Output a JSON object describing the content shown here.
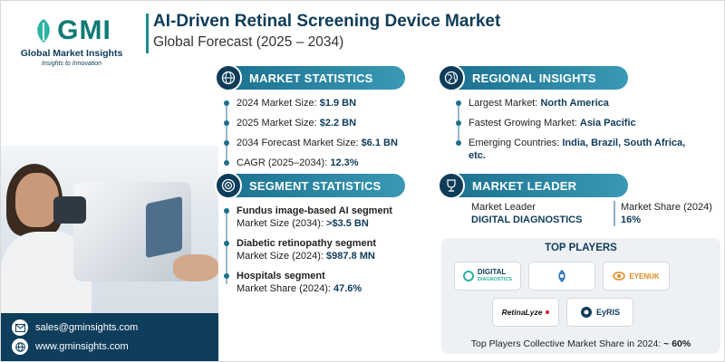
{
  "brand": {
    "logo_text": "GMI",
    "name": "Global Market Insights",
    "tagline": "Insights to Innovation"
  },
  "header": {
    "title": "AI-Driven Retinal Screening Device Market",
    "subtitle": "Global Forecast (2025 – 2034)"
  },
  "market_statistics": {
    "heading": "MARKET STATISTICS",
    "items": [
      {
        "label": "2024 Market Size: ",
        "value": "$1.9 BN"
      },
      {
        "label": "2025 Market Size: ",
        "value": "$2.2 BN"
      },
      {
        "label": "2034 Forecast Market Size: ",
        "value": "$6.1 BN"
      },
      {
        "label": "CAGR (2025–2034): ",
        "value": "12.3%"
      }
    ]
  },
  "regional_insights": {
    "heading": "REGIONAL INSIGHTS",
    "items": [
      {
        "label": "Largest Market: ",
        "value": "North America"
      },
      {
        "label": "Fastest Growing Market: ",
        "value": "Asia Pacific"
      },
      {
        "label": "Emerging Countries: ",
        "value": "India, Brazil, South Africa, etc."
      }
    ]
  },
  "segment_statistics": {
    "heading": "SEGMENT STATISTICS",
    "items": [
      {
        "name": "Fundus image-based AI segment",
        "label": "Market Size (2034): ",
        "value": ">$3.5 BN"
      },
      {
        "name": "Diabetic retinopathy segment",
        "label": "Market Size (2024): ",
        "value": "$987.8 MN"
      },
      {
        "name": "Hospitals segment",
        "label": "Market Share (2024): ",
        "value": "47.6%"
      }
    ]
  },
  "market_leader": {
    "heading": "MARKET LEADER",
    "leader_label": "Market Leader",
    "leader_value": "DIGITAL DIAGNOSTICS",
    "share_label": "Market Share (2024)",
    "share_value": "16%"
  },
  "top_players": {
    "heading": "TOP PLAYERS",
    "logos": [
      {
        "text": "DIGITAL",
        "text2": "DIAGNOSTICS",
        "color": "#0e3c59",
        "accent": "#2bb3a3",
        "icon": "digital-diagnostics-logo"
      },
      {
        "text": "",
        "color": "#3a7cc0",
        "icon": "aeye-health-logo"
      },
      {
        "text": "EYENUK",
        "color": "#e08a1e",
        "icon": "eyenuk-logo"
      },
      {
        "text": "RetinaLyze",
        "color": "#111111",
        "accent": "#d0222a",
        "icon": "retinalyze-logo"
      },
      {
        "text": "EyRIS",
        "color": "#0e3c59",
        "icon": "eyris-logo"
      }
    ],
    "footer_label": "Top Players Collective Market Share in 2024: ",
    "footer_value": "~ 60%"
  },
  "contact": {
    "email": "sales@gminsights.com",
    "website": "www.gminsights.com"
  },
  "colors": {
    "navy": "#0e3c59",
    "teal": "#1d8a8a",
    "section_blue": "#1a6f8f"
  }
}
